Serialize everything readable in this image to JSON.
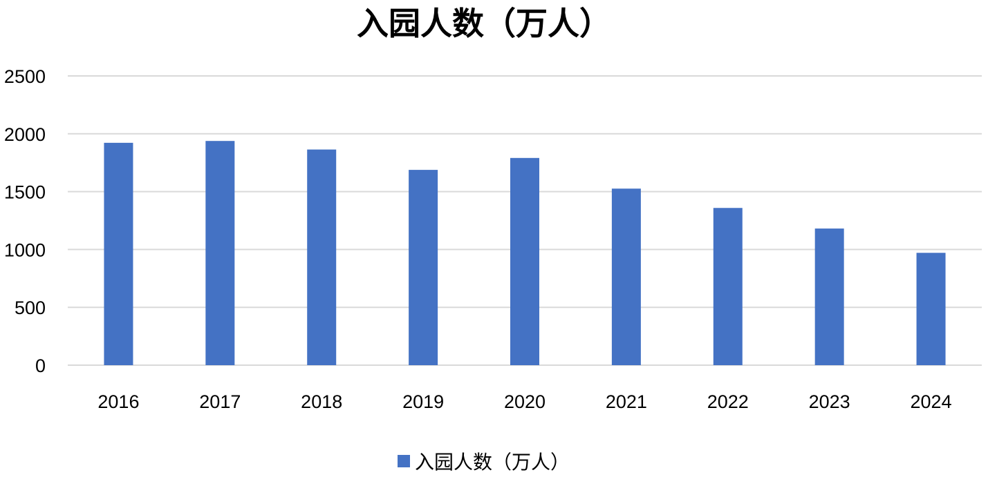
{
  "chart_data": {
    "type": "bar",
    "title": "入园人数（万人）",
    "categories": [
      "2016",
      "2017",
      "2018",
      "2019",
      "2020",
      "2021",
      "2022",
      "2023",
      "2024"
    ],
    "series": [
      {
        "name": "入园人数（万人）",
        "values": [
          1922,
          1938,
          1864,
          1688,
          1791,
          1526,
          1359,
          1181,
          971
        ]
      }
    ],
    "xlabel": "",
    "ylabel": "",
    "ylim": [
      0,
      2500
    ],
    "yticks": [
      "0",
      "500",
      "1000",
      "1500",
      "2000",
      "2500"
    ],
    "grid": true,
    "legend_position": "bottom",
    "colors": {
      "bar": "#4472c4",
      "grid": "#d9d9d9"
    }
  }
}
